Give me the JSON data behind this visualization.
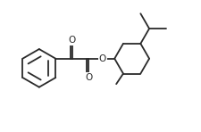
{
  "background": "#ffffff",
  "line_color": "#2a2a2a",
  "line_width": 1.3,
  "font_size": 7.5,
  "fig_width": 2.25,
  "fig_height": 1.48,
  "dpi": 100,
  "xlim": [
    0,
    9.5
  ],
  "ylim": [
    0,
    6.2
  ]
}
